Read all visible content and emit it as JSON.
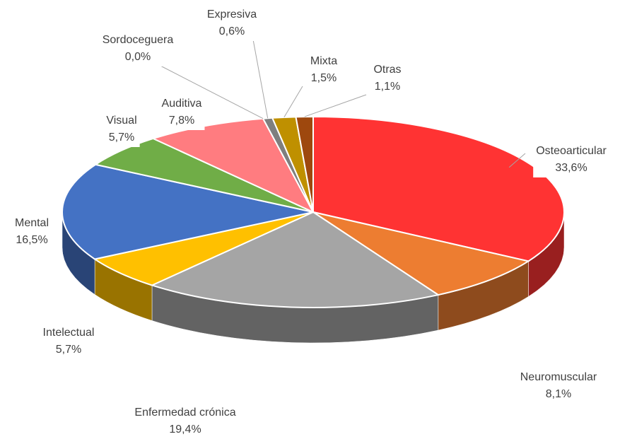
{
  "chart_data": {
    "type": "pie",
    "categories": [
      "Osteoarticular",
      "Neuromuscular",
      "Enfermedad crónica",
      "Intelectual",
      "Mental",
      "Visual",
      "Auditiva",
      "Sordoceguera",
      "Expresiva",
      "Mixta",
      "Otras"
    ],
    "values": [
      33.6,
      8.1,
      19.4,
      5.7,
      16.5,
      5.7,
      7.8,
      0.0,
      0.6,
      1.5,
      1.1
    ],
    "value_labels": [
      "33,6%",
      "8,1%",
      "19,4%",
      "5,7%",
      "16,5%",
      "5,7%",
      "7,8%",
      "0,0%",
      "0,6%",
      "1,5%",
      "1,1%"
    ],
    "colors": [
      "#ff3333",
      "#ed7d31",
      "#a5a5a5",
      "#ffc000",
      "#4472c4",
      "#70ad47",
      "#ff7c80",
      "#264478",
      "#7f7f7f",
      "#bf9000",
      "#9e480e"
    ]
  }
}
